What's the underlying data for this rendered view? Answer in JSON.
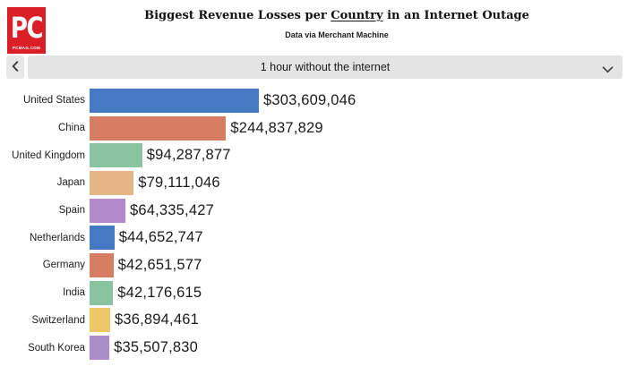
{
  "header": {
    "logo": {
      "line1": "PC",
      "line2": "PCMAG.COM",
      "bg_color": "#da2026",
      "text_color": "#ffffff"
    },
    "title_prefix": "Biggest Revenue Losses per ",
    "title_underlined": "Country",
    "title_suffix": " in an Internet Outage",
    "subtitle": "Data via Merchant Machine"
  },
  "controls": {
    "back_button": {
      "icon": "chevron-left-icon"
    },
    "dropdown": {
      "selected": "1 hour without the internet",
      "icon": "chevron-down-icon",
      "bg_color": "#e4e4e4"
    }
  },
  "chart_data": {
    "type": "bar",
    "orientation": "horizontal",
    "title": "Biggest Revenue Losses per Country in an Internet Outage",
    "subtitle": "Data via Merchant Machine",
    "period": "1 hour without the internet",
    "categories": [
      "United States",
      "China",
      "United Kingdom",
      "Japan",
      "Spain",
      "Netherlands",
      "Germany",
      "India",
      "Switzerland",
      "South Korea"
    ],
    "values": [
      303609046,
      244837829,
      94287877,
      79111046,
      64335427,
      44652747,
      42651577,
      42176615,
      36894461,
      35507830
    ],
    "value_labels": [
      "$303,609,046",
      "$244,837,829",
      "$94,287,877",
      "$79,111,046",
      "$64,335,427",
      "$44,652,747",
      "$42,651,577",
      "$42,176,615",
      "$36,894,461",
      "$35,507,830"
    ],
    "bar_colors": [
      "#4679c4",
      "#d67d62",
      "#8ac39f",
      "#e5b685",
      "#b18bcb",
      "#4679c4",
      "#d67d62",
      "#8ac39f",
      "#ecc763",
      "#ab8ec9"
    ],
    "xlim": [
      0,
      303609046
    ],
    "grid": false,
    "legend": "none"
  }
}
